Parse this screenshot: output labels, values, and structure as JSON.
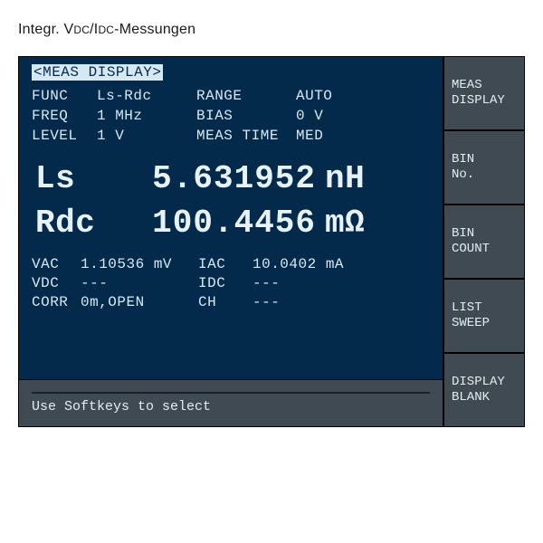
{
  "caption_pre": "Integr. V",
  "caption_sub1": "DC",
  "caption_mid": "/I",
  "caption_sub2": "DC",
  "caption_post": "-Messungen",
  "screen_title": "<MEAS DISPLAY>",
  "params": {
    "func_label": "FUNC",
    "func_value": "Ls-Rdc",
    "range_label": "RANGE",
    "range_value": "AUTO",
    "freq_label": "FREQ",
    "freq_value": "1 MHz",
    "bias_label": "BIAS",
    "bias_value": "0 V",
    "level_label": "LEVEL",
    "level_value": "1 V",
    "mtime_label": "MEAS TIME",
    "mtime_value": "MED"
  },
  "primary": {
    "label": "Ls",
    "value": "5.631952",
    "unit": "nH"
  },
  "secondary": {
    "label": "Rdc",
    "value": "100.4456",
    "unit": "mΩ"
  },
  "sub": {
    "vac_label": "VAC",
    "vac_value": "1.10536 mV",
    "iac_label": "IAC",
    "iac_value": "10.0402 mA",
    "vdc_label": "VDC",
    "vdc_value": "---",
    "idc_label": "IDC",
    "idc_value": "---",
    "corr_label": "CORR",
    "corr_value": "0m,OPEN",
    "ch_label": "CH",
    "ch_value": "---"
  },
  "status_message": "Use Softkeys to select",
  "softkeys": {
    "k1a": "MEAS",
    "k1b": "DISPLAY",
    "k2a": "BIN",
    "k2b": "No.",
    "k3a": "BIN",
    "k3b": "COUNT",
    "k4a": "LIST",
    "k4b": "SWEEP",
    "k5a": "DISPLAY",
    "k5b": "BLANK"
  },
  "colors": {
    "screen_bg": "#032a4a",
    "screen_fg": "#d7e8f5",
    "panel_bg": "#3f4a52",
    "page_bg": "#ffffff"
  }
}
